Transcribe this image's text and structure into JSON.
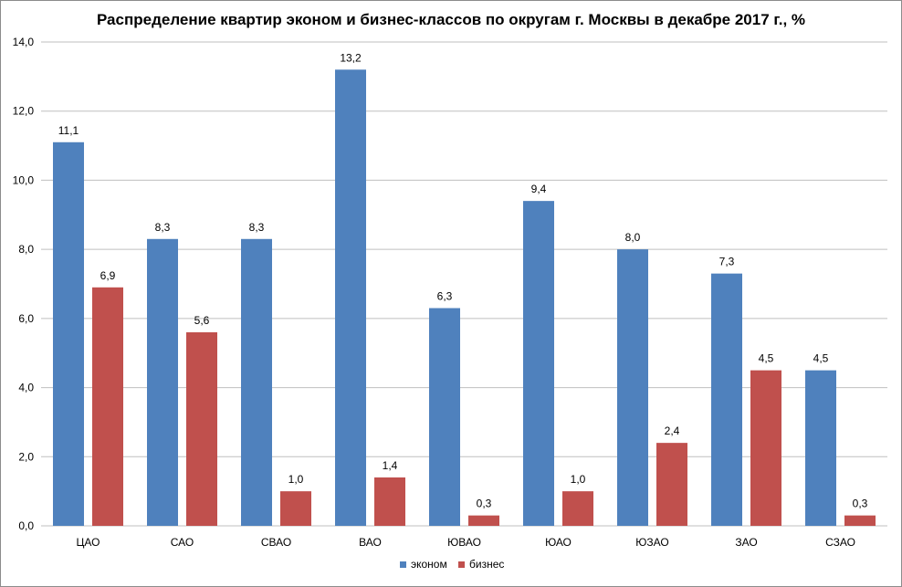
{
  "chart_data": {
    "type": "bar",
    "title": "Распределение квартир эконом и бизнес-классов по округам г. Москвы в декабре 2017 г., %",
    "categories": [
      "ЦАО",
      "САО",
      "СВАО",
      "ВАО",
      "ЮВАО",
      "ЮАО",
      "ЮЗАО",
      "ЗАО",
      "СЗАО"
    ],
    "series": [
      {
        "name": "эконом",
        "color": "#4f81bd",
        "values": [
          11.1,
          8.3,
          8.3,
          13.2,
          6.3,
          9.4,
          8.0,
          7.3,
          4.5
        ],
        "labels": [
          "11,1",
          "8,3",
          "8,3",
          "13,2",
          "6,3",
          "9,4",
          "8,0",
          "7,3",
          "4,5"
        ]
      },
      {
        "name": "бизнес",
        "color": "#c0504d",
        "values": [
          6.9,
          5.6,
          1.0,
          1.4,
          0.3,
          1.0,
          2.4,
          4.5,
          0.3
        ],
        "labels": [
          "6,9",
          "5,6",
          "1,0",
          "1,4",
          "0,3",
          "1,0",
          "2,4",
          "4,5",
          "0,3"
        ]
      }
    ],
    "ylim": [
      0,
      14
    ],
    "yticks": [
      "0,0",
      "2,0",
      "4,0",
      "6,0",
      "8,0",
      "10,0",
      "12,0",
      "14,0"
    ],
    "grid": true,
    "legend": "bottom"
  }
}
